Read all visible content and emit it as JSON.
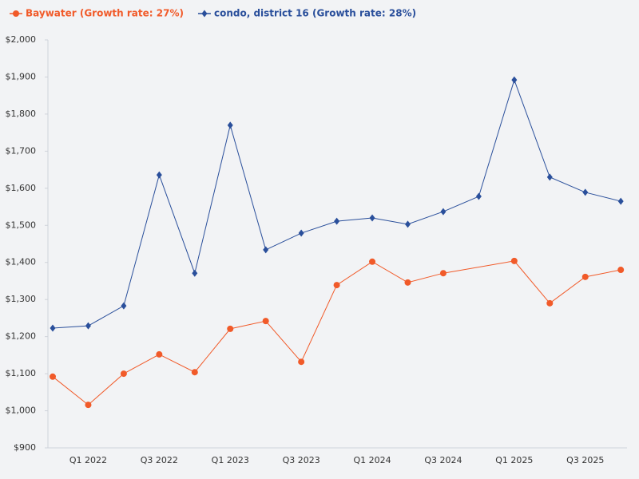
{
  "chart_data": {
    "type": "line",
    "categories": [
      null,
      "Q1 2022",
      null,
      "Q3 2022",
      null,
      "Q1 2023",
      null,
      "Q3 2023",
      null,
      "Q1 2024",
      null,
      "Q3 2024",
      null,
      "Q1 2025",
      null,
      "Q3 2025",
      null
    ],
    "series": [
      {
        "name": "Baywater (Growth rate: 27%)",
        "color": "#f15a29",
        "marker": "circle",
        "values": [
          1092,
          1016,
          1100,
          1152,
          1104,
          1221,
          1242,
          1132,
          1339,
          1402,
          1346,
          1371,
          null,
          1404,
          1290,
          1361,
          1380
        ]
      },
      {
        "name": "condo, district 16 (Growth rate: 28%)",
        "color": "#2a4f9b",
        "marker": "diamond",
        "values": [
          1223,
          1229,
          1283,
          1636,
          1371,
          1770,
          1434,
          1479,
          1511,
          1520,
          1503,
          1537,
          1578,
          1892,
          1630,
          1589,
          1565
        ]
      }
    ],
    "ylim": [
      900,
      2000
    ],
    "yticks": [
      {
        "value": 900,
        "label": "$900"
      },
      {
        "value": 1000,
        "label": "$1,000"
      },
      {
        "value": 1100,
        "label": "$1,100"
      },
      {
        "value": 1200,
        "label": "$1,200"
      },
      {
        "value": 1300,
        "label": "$1,300"
      },
      {
        "value": 1400,
        "label": "$1,400"
      },
      {
        "value": 1500,
        "label": "$1,500"
      },
      {
        "value": 1600,
        "label": "$1,600"
      },
      {
        "value": 1700,
        "label": "$1,700"
      },
      {
        "value": 1800,
        "label": "$1,800"
      },
      {
        "value": 1900,
        "label": "$1,900"
      },
      {
        "value": 2000,
        "label": "$2,000"
      }
    ],
    "connect_gaps": true,
    "legend": "top-left"
  }
}
